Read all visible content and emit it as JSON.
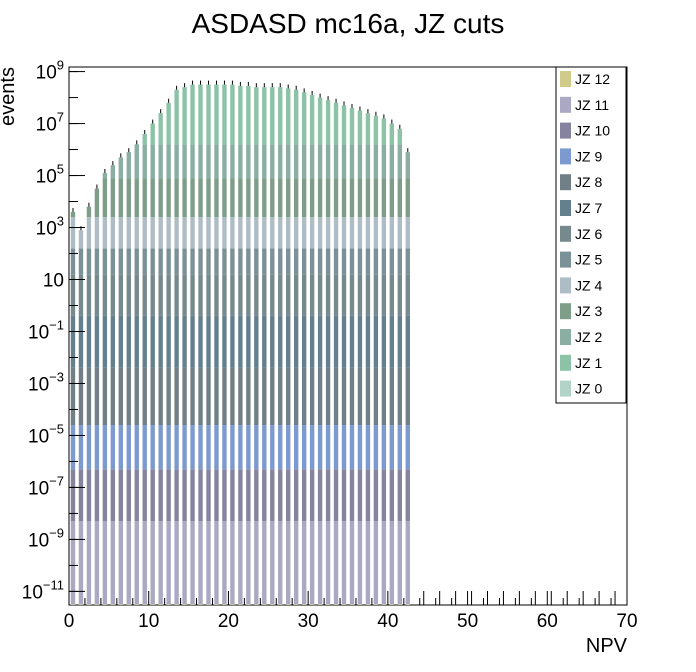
{
  "chart_data": {
    "type": "bar",
    "stacked": true,
    "title": "ASDASD mc16a, JZ cuts",
    "xlabel": "NPV",
    "ylabel": "events",
    "xlim": [
      0,
      70
    ],
    "ylim": [
      3e-12,
      1500000000.0
    ],
    "yscale": "log",
    "grid": false,
    "legend_position": "top-right",
    "x_ticks": [
      {
        "value": 0,
        "label": "0"
      },
      {
        "value": 10,
        "label": "10"
      },
      {
        "value": 20,
        "label": "20"
      },
      {
        "value": 30,
        "label": "30"
      },
      {
        "value": 40,
        "label": "40"
      },
      {
        "value": 50,
        "label": "50"
      },
      {
        "value": 60,
        "label": "60"
      },
      {
        "value": 70,
        "label": "70"
      }
    ],
    "y_ticks": [
      {
        "value": 1000000000.0,
        "base": "10",
        "exp": "9"
      },
      {
        "value": 10000000.0,
        "base": "10",
        "exp": "7"
      },
      {
        "value": 100000.0,
        "base": "10",
        "exp": "5"
      },
      {
        "value": 1000.0,
        "base": "10",
        "exp": "3"
      },
      {
        "value": 10,
        "base": "10",
        "exp": ""
      },
      {
        "value": 0.1,
        "base": "10",
        "exp": "−1"
      },
      {
        "value": 0.001,
        "base": "10",
        "exp": "−3"
      },
      {
        "value": 1e-05,
        "base": "10",
        "exp": "−5"
      },
      {
        "value": 1e-07,
        "base": "10",
        "exp": "−7"
      },
      {
        "value": 1e-09,
        "base": "10",
        "exp": "−9"
      },
      {
        "value": 1e-11,
        "base": "10",
        "exp": "−11"
      }
    ],
    "bins": [
      0,
      1,
      2,
      3,
      4,
      5,
      6,
      7,
      8,
      9,
      10,
      11,
      12,
      13,
      14,
      15,
      16,
      17,
      18,
      19,
      20,
      21,
      22,
      23,
      24,
      25,
      26,
      27,
      28,
      29,
      30,
      31,
      32,
      33,
      34,
      35,
      36,
      37,
      38,
      39,
      40,
      41,
      42
    ],
    "stack_tops_log10": [
      3.6,
      2.9,
      3.8,
      4.5,
      5.1,
      5.4,
      5.7,
      5.9,
      6.2,
      6.6,
      7.0,
      7.4,
      7.8,
      8.3,
      8.4,
      8.5,
      8.5,
      8.5,
      8.5,
      8.5,
      8.5,
      8.45,
      8.45,
      8.4,
      8.4,
      8.4,
      8.4,
      8.35,
      8.3,
      8.2,
      8.1,
      8.0,
      7.9,
      7.8,
      7.7,
      7.6,
      7.5,
      7.4,
      7.3,
      7.2,
      7.0,
      6.8,
      5.9
    ],
    "series": [
      {
        "name": "JZ 12",
        "color": "#d0cb8a",
        "log10_top": -11.5
      },
      {
        "name": "JZ 11",
        "color": "#aaa8c2",
        "log10_top": -8.3
      },
      {
        "name": "JZ 10",
        "color": "#85839e",
        "log10_top": -6.3
      },
      {
        "name": "JZ 9",
        "color": "#7d9ad0",
        "log10_top": -4.6
      },
      {
        "name": "JZ 8",
        "color": "#718086",
        "log10_top": -2.4
      },
      {
        "name": "JZ 7",
        "color": "#64808e",
        "log10_top": -0.4
      },
      {
        "name": "JZ 6",
        "color": "#768a8e",
        "log10_top": 1.2
      },
      {
        "name": "JZ 5",
        "color": "#7b9198",
        "log10_top": 2.2
      },
      {
        "name": "JZ 4",
        "color": "#aebcc6",
        "log10_top": 3.4
      },
      {
        "name": "JZ 3",
        "color": "#7f9e8a",
        "log10_top": 4.9
      },
      {
        "name": "JZ 2",
        "color": "#8aaea2",
        "log10_top": 6.2
      },
      {
        "name": "JZ 1",
        "color": "#8cc2a6",
        "log10_top": 8.6
      },
      {
        "name": "JZ 0",
        "color": "#b3d2c8",
        "log10_top": 9.0
      }
    ]
  }
}
